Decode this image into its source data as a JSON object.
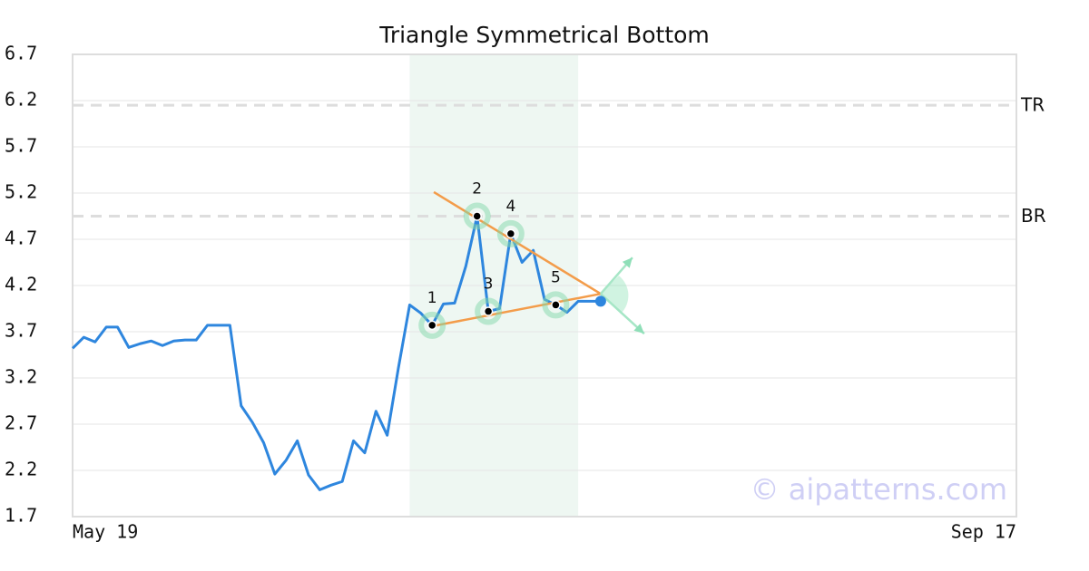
{
  "chart_data": {
    "type": "line",
    "title": "Triangle Symmetrical Bottom",
    "categories": [
      "May 19",
      null,
      null,
      null,
      null,
      null,
      null,
      null,
      null,
      null,
      null,
      null,
      null,
      null,
      null,
      null,
      null,
      null,
      null,
      null,
      null,
      null,
      null,
      null,
      null,
      null,
      null,
      null,
      null,
      null,
      null,
      null,
      null,
      null,
      null,
      null,
      null,
      null,
      null,
      null,
      null,
      null,
      null,
      null,
      null,
      null,
      null,
      null,
      null,
      null,
      null,
      null,
      null,
      null,
      null,
      null,
      null,
      null,
      null,
      null,
      null,
      null,
      null,
      null,
      null,
      null,
      null,
      null,
      null,
      null,
      null,
      null,
      null,
      null,
      null,
      null,
      null,
      null,
      null,
      null,
      null,
      null,
      null,
      null,
      "Sep 17"
    ],
    "values": [
      3.52,
      3.64,
      3.59,
      3.75,
      3.75,
      3.53,
      3.57,
      3.6,
      3.55,
      3.6,
      3.61,
      3.61,
      3.77,
      3.77,
      3.77,
      2.9,
      2.72,
      2.5,
      2.16,
      2.31,
      2.52,
      2.15,
      1.99,
      2.04,
      2.08,
      2.52,
      2.39,
      2.84,
      2.58,
      3.31,
      3.99,
      3.9,
      3.77,
      4.0,
      4.01,
      4.41,
      4.95,
      3.92,
      3.95,
      4.76,
      4.45,
      4.58,
      4.05,
      3.99,
      3.91,
      4.03,
      4.03,
      4.03,
      null,
      null,
      null,
      null,
      null,
      null,
      null,
      null,
      null,
      null,
      null,
      null,
      null,
      null,
      null,
      null,
      null,
      null,
      null,
      null,
      null,
      null,
      null,
      null,
      null,
      null,
      null,
      null,
      null,
      null,
      null,
      null,
      null,
      null,
      null,
      null,
      null
    ],
    "color": "#2e86de",
    "ylim": [
      1.7,
      6.7
    ],
    "yticks": [
      1.7,
      2.2,
      2.7,
      3.2,
      3.7,
      4.2,
      4.7,
      5.2,
      5.7,
      6.2,
      6.7
    ],
    "grid": true,
    "levels": [
      {
        "label": "TR",
        "value": 6.15
      },
      {
        "label": "BR",
        "value": 4.95
      }
    ],
    "highlight": {
      "start": 30,
      "end": 45
    },
    "pattern_points": [
      {
        "label": "1",
        "index": 32
      },
      {
        "label": "2",
        "index": 36
      },
      {
        "label": "3",
        "index": 37
      },
      {
        "label": "4",
        "index": 39
      },
      {
        "label": "5",
        "index": 43
      }
    ],
    "trendlines": {
      "upper": [
        [
          32.15,
          5.21
        ],
        [
          47,
          4.11
        ]
      ],
      "lower": [
        [
          32,
          3.76
        ],
        [
          47,
          4.11
        ]
      ]
    },
    "watermark": "© aipatterns.com"
  }
}
